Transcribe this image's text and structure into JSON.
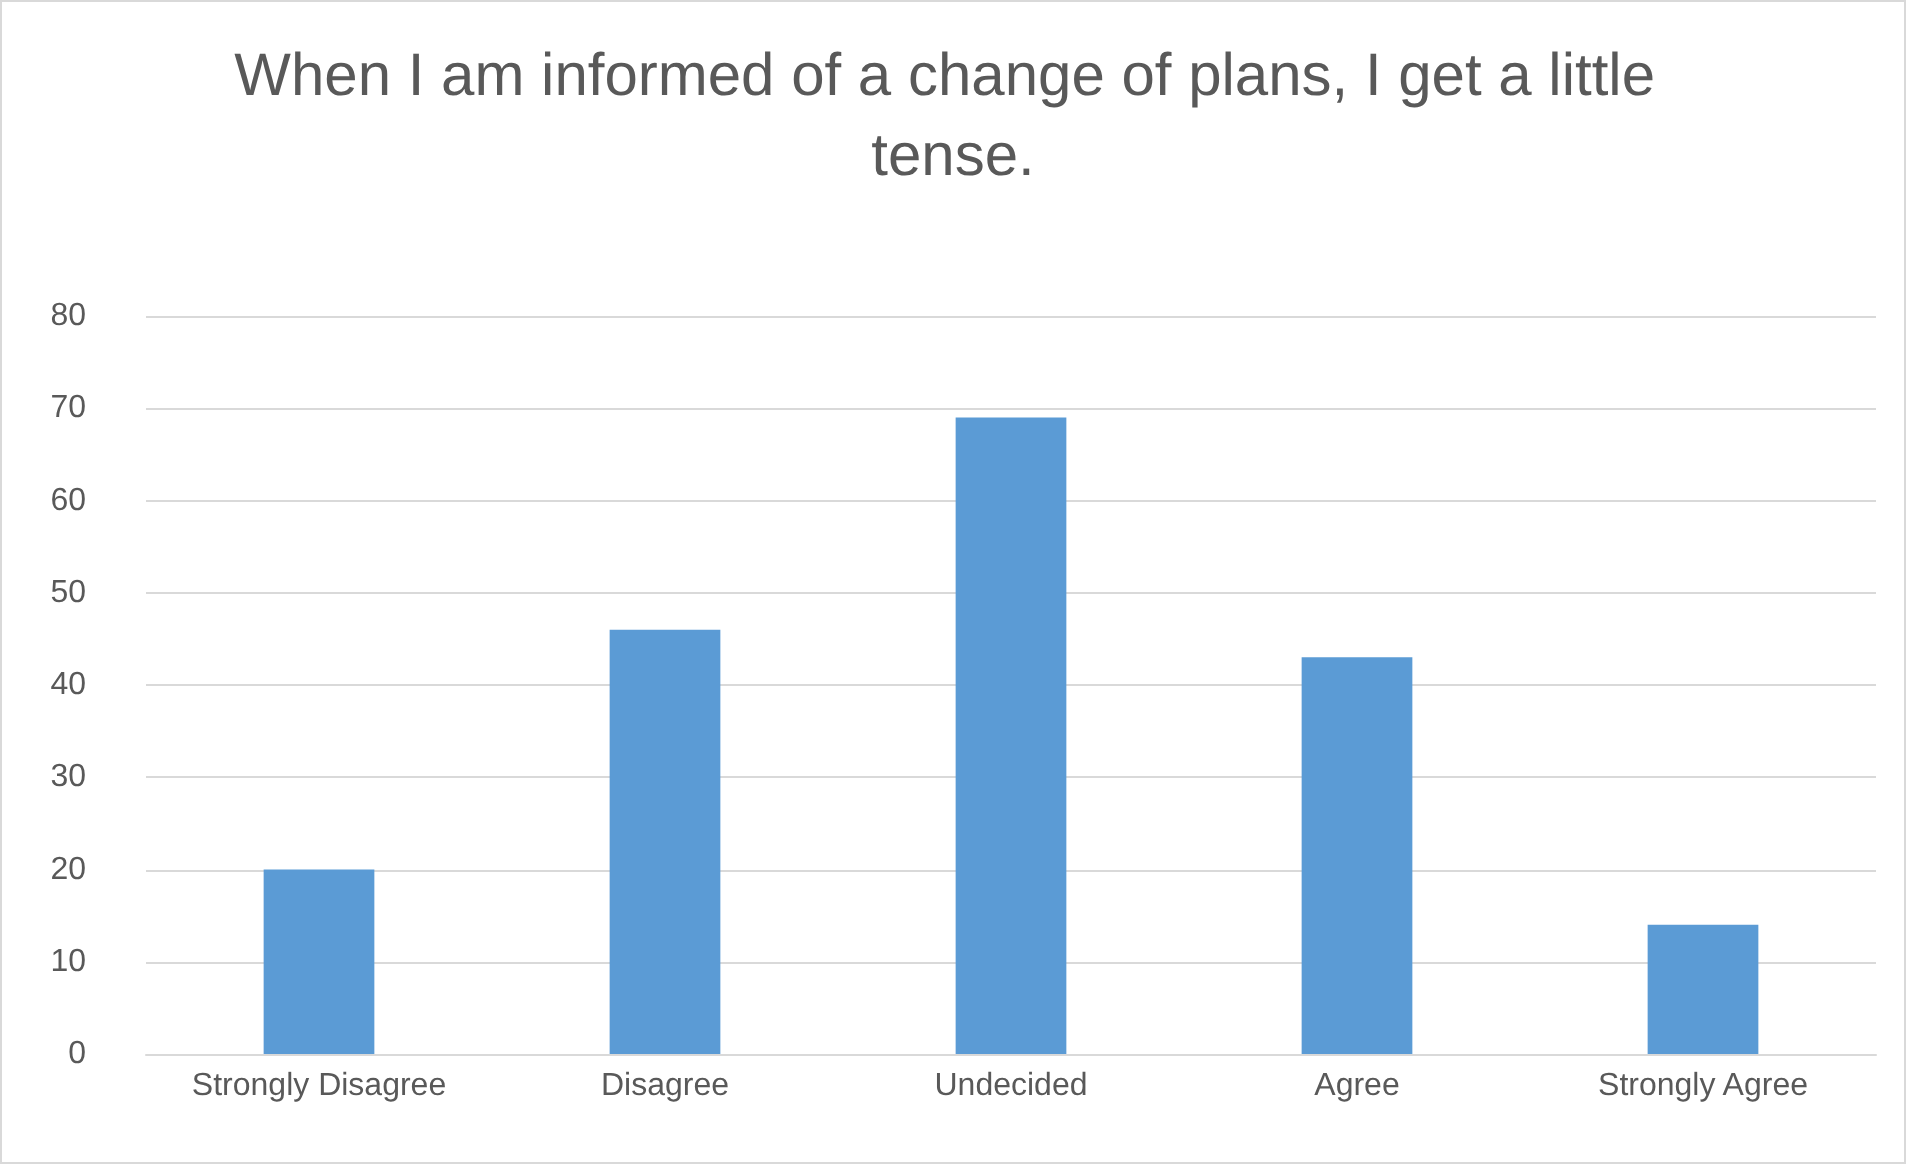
{
  "chart_data": {
    "type": "bar",
    "title": "When I am informed of a change of plans, I get a little tense.",
    "categories": [
      "Strongly Disagree",
      "Disagree",
      "Undecided",
      "Agree",
      "Strongly Agree"
    ],
    "values": [
      20,
      46,
      69,
      43,
      14
    ],
    "color": "#5b9bd5",
    "ylim": [
      0,
      80
    ],
    "yticks": [
      0,
      10,
      20,
      30,
      40,
      50,
      60,
      70,
      80
    ],
    "grid": "y"
  }
}
